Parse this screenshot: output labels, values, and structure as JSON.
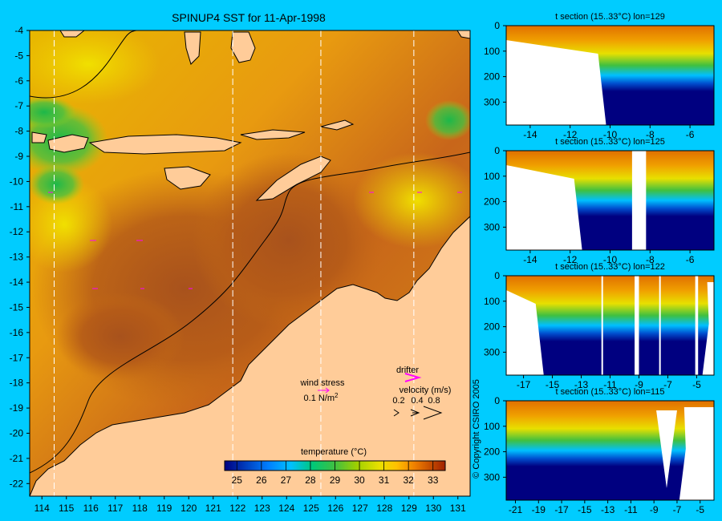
{
  "chart_data": {
    "map": {
      "type": "heatmap",
      "title": "SPINUP4 SST for 11-Apr-1998",
      "x_ticks": [
        114,
        115,
        116,
        117,
        118,
        119,
        120,
        121,
        122,
        123,
        124,
        125,
        126,
        127,
        128,
        129,
        130,
        131
      ],
      "y_ticks": [
        -4,
        -5,
        -6,
        -7,
        -8,
        -9,
        -10,
        -11,
        -12,
        -13,
        -14,
        -15,
        -16,
        -17,
        -18,
        -19,
        -20,
        -21,
        -22
      ],
      "xlim": [
        113.5,
        131.5
      ],
      "ylim": [
        -22.5,
        -4
      ],
      "section_lines": [
        114.5,
        121.8,
        125.4,
        129.2
      ],
      "colorbar": {
        "label": "temperature (°C)",
        "ticks": [
          25,
          26,
          27,
          28,
          29,
          30,
          31,
          32,
          33
        ],
        "range": [
          24.5,
          33.5
        ],
        "colors": [
          "#000080",
          "#0040c0",
          "#0080ff",
          "#00c0ff",
          "#00c878",
          "#40c040",
          "#a0d000",
          "#e8e000",
          "#ffc000",
          "#f08000",
          "#c85000",
          "#a02000"
        ]
      },
      "legend": {
        "wind_stress_label": "wind stress",
        "wind_stress_value": "0.1 N/m",
        "wind_stress_exp": "2",
        "drifter_label": "drifter",
        "velocity_label": "velocity (m/s)",
        "velocity_values": [
          "0.2",
          "0.4",
          "0.8"
        ]
      },
      "colors": {
        "land": "#ffcc99",
        "drifter": "#ff00ff",
        "section": "#ffffff"
      }
    },
    "sections": [
      {
        "title": "t section (15..33°C) lon=129",
        "x_ticks": [
          -14,
          -12,
          -10,
          -8,
          -6
        ],
        "xlim": [
          -15.2,
          -4.8
        ],
        "y_ticks": [
          0,
          100,
          200,
          300
        ],
        "ylim": [
          0,
          390
        ]
      },
      {
        "title": "t section (15..33°C) lon=125",
        "x_ticks": [
          -14,
          -12,
          -10,
          -8,
          -6
        ],
        "xlim": [
          -15.2,
          -4.8
        ],
        "y_ticks": [
          0,
          100,
          200,
          300
        ],
        "ylim": [
          0,
          390
        ]
      },
      {
        "title": "t section (15..33°C) lon=122",
        "x_ticks": [
          -17,
          -15,
          -13,
          -11,
          -9,
          -7,
          -5
        ],
        "xlim": [
          -18.2,
          -3.8
        ],
        "y_ticks": [
          0,
          100,
          200,
          300
        ],
        "ylim": [
          0,
          390
        ]
      },
      {
        "title": "t section (15..33°C) lon=115",
        "x_ticks": [
          -21,
          -19,
          -17,
          -15,
          -13,
          -11,
          -9,
          -7,
          -5
        ],
        "xlim": [
          -21.8,
          -3.8
        ],
        "y_ticks": [
          0,
          100,
          200,
          300
        ],
        "ylim": [
          0,
          390
        ]
      }
    ],
    "copyright": "© Copyright CSIRO 2005"
  }
}
